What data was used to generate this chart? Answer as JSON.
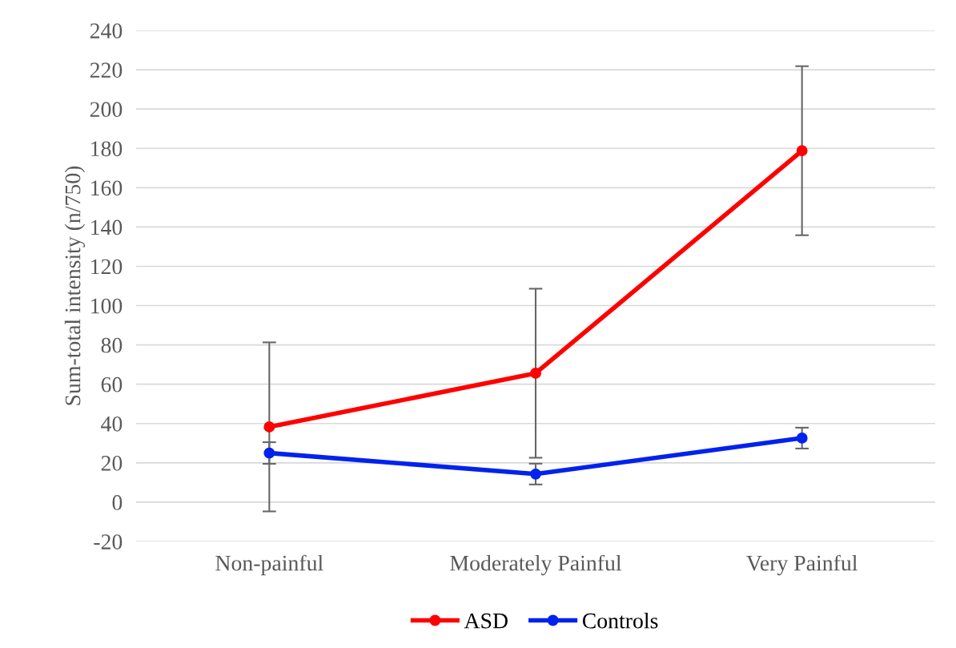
{
  "chart_data": {
    "type": "line",
    "ylabel": "Sum-total intensity (n/750)",
    "categories": [
      "Non-painful",
      "Moderately Painful",
      "Very Painful"
    ],
    "series": [
      {
        "name": "ASD",
        "color": "#ff0000",
        "values": [
          38.3,
          65.6,
          178.8
        ],
        "errors": [
          43,
          43,
          43
        ]
      },
      {
        "name": "Controls",
        "color": "#0022ee",
        "values": [
          25,
          14.3,
          32.6
        ],
        "errors": [
          5.5,
          5.3,
          5.3
        ]
      }
    ],
    "ylim": [
      -20,
      240
    ],
    "yticks": [
      -20,
      0,
      20,
      40,
      60,
      80,
      100,
      120,
      140,
      160,
      180,
      200,
      220,
      240
    ],
    "grid": "y",
    "legend": "bottom",
    "marker": "circle",
    "line_style": "solid"
  }
}
